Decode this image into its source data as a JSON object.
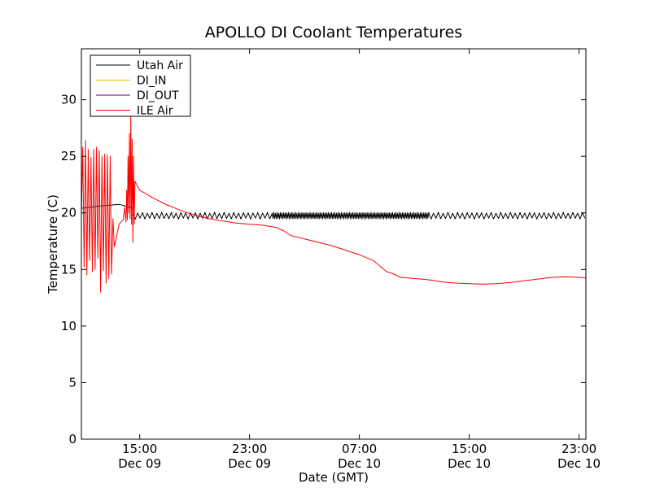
{
  "chart_data": {
    "type": "line",
    "title": "APOLLO DI Coolant Temperatures",
    "xlabel": "Date (GMT)",
    "ylabel": "Temperature (C)",
    "xlim_hours": [
      10.75,
      47.5
    ],
    "ylim": [
      0,
      34.5
    ],
    "yticks": [
      0,
      5,
      10,
      15,
      20,
      25,
      30
    ],
    "xticks": [
      {
        "hour": 15,
        "time": "15:00",
        "date": "Dec 09"
      },
      {
        "hour": 23,
        "time": "23:00",
        "date": "Dec 09"
      },
      {
        "hour": 31,
        "time": "07:00",
        "date": "Dec 10"
      },
      {
        "hour": 39,
        "time": "15:00",
        "date": "Dec 10"
      },
      {
        "hour": 47,
        "time": "23:00",
        "date": "Dec 10"
      }
    ],
    "legend_position": "top-left",
    "series": [
      {
        "name": "Utah Air",
        "color": "#000000",
        "smooth": [
          [
            10.75,
            20.4
          ],
          [
            11.5,
            20.5
          ],
          [
            12.0,
            20.6
          ],
          [
            12.5,
            20.65
          ],
          [
            13.0,
            20.7
          ],
          [
            13.5,
            20.75
          ],
          [
            14.0,
            20.6
          ],
          [
            14.5,
            20.4
          ]
        ],
        "oscillation": {
          "start_hour": 14.5,
          "end_hour": 47.5,
          "center": 19.75,
          "amplitude": 0.3,
          "period_hours": 0.35,
          "dense_start_hour": 24.5,
          "dense_end_hour": 36.0,
          "dense_period_hours": 0.12
        }
      },
      {
        "name": "DI_IN",
        "color": "#e8b800",
        "points": []
      },
      {
        "name": "DI_OUT",
        "color": "#660066",
        "points": []
      },
      {
        "name": "ILE Air",
        "color": "#ff0000",
        "points": [
          [
            10.75,
            19.5
          ],
          [
            10.85,
            25.8
          ],
          [
            10.95,
            15.2
          ],
          [
            11.05,
            26.4
          ],
          [
            11.15,
            14.5
          ],
          [
            11.25,
            25.6
          ],
          [
            11.35,
            15.8
          ],
          [
            11.45,
            24.9
          ],
          [
            11.55,
            14.8
          ],
          [
            11.65,
            25.6
          ],
          [
            11.75,
            15.0
          ],
          [
            11.85,
            25.8
          ],
          [
            11.95,
            16.0
          ],
          [
            12.05,
            25.5
          ],
          [
            12.15,
            13.0
          ],
          [
            12.25,
            25.0
          ],
          [
            12.35,
            14.9
          ],
          [
            12.45,
            25.2
          ],
          [
            12.55,
            13.8
          ],
          [
            12.65,
            25.1
          ],
          [
            12.75,
            14.2
          ],
          [
            12.85,
            25.0
          ],
          [
            12.95,
            14.6
          ],
          [
            13.05,
            19.5
          ],
          [
            13.15,
            17.0
          ],
          [
            13.5,
            19.0
          ],
          [
            13.8,
            19.4
          ],
          [
            13.9,
            20.5
          ],
          [
            14.0,
            19.2
          ],
          [
            14.05,
            22.0
          ],
          [
            14.1,
            19.4
          ],
          [
            14.15,
            25.0
          ],
          [
            14.2,
            20.0
          ],
          [
            14.25,
            27.0
          ],
          [
            14.3,
            19.5
          ],
          [
            14.35,
            28.8
          ],
          [
            14.4,
            19.0
          ],
          [
            14.45,
            26.5
          ],
          [
            14.5,
            17.4
          ],
          [
            14.55,
            25.0
          ],
          [
            14.6,
            19.0
          ],
          [
            14.65,
            22.8
          ],
          [
            15.0,
            22.0
          ],
          [
            16.0,
            21.3
          ],
          [
            17.0,
            20.7
          ],
          [
            18.0,
            20.2
          ],
          [
            19.0,
            19.8
          ],
          [
            20.0,
            19.5
          ],
          [
            21.0,
            19.3
          ],
          [
            22.0,
            19.1
          ],
          [
            23.0,
            19.0
          ],
          [
            24.0,
            18.9
          ],
          [
            25.0,
            18.7
          ],
          [
            25.5,
            18.4
          ],
          [
            26.0,
            18.0
          ],
          [
            27.0,
            17.7
          ],
          [
            28.0,
            17.4
          ],
          [
            29.0,
            17.1
          ],
          [
            30.0,
            16.7
          ],
          [
            31.0,
            16.3
          ],
          [
            32.0,
            15.8
          ],
          [
            32.5,
            15.3
          ],
          [
            33.0,
            14.8
          ],
          [
            33.5,
            14.6
          ],
          [
            34.0,
            14.3
          ],
          [
            35.0,
            14.2
          ],
          [
            36.0,
            14.1
          ],
          [
            37.0,
            13.9
          ],
          [
            38.0,
            13.8
          ],
          [
            39.0,
            13.75
          ],
          [
            40.0,
            13.7
          ],
          [
            41.0,
            13.75
          ],
          [
            42.0,
            13.85
          ],
          [
            43.0,
            14.0
          ],
          [
            44.0,
            14.15
          ],
          [
            45.0,
            14.3
          ],
          [
            46.0,
            14.35
          ],
          [
            47.0,
            14.3
          ],
          [
            47.5,
            14.25
          ]
        ]
      }
    ]
  }
}
